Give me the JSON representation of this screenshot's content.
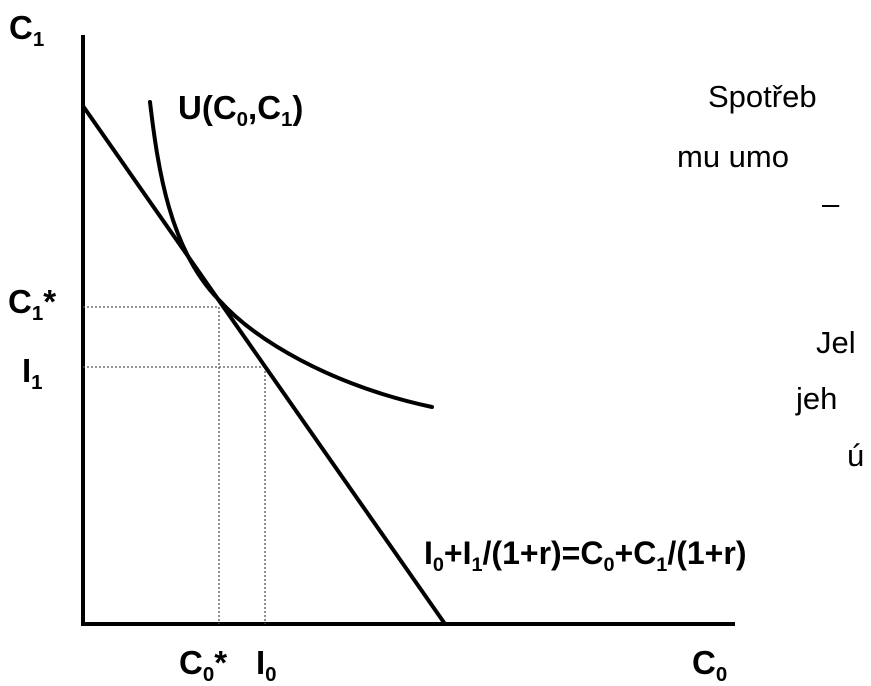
{
  "axes": {
    "y_label": {
      "base": "C",
      "sub": "1"
    },
    "x_label": {
      "base": "C",
      "sub": "0"
    }
  },
  "ticks": {
    "c1_star": {
      "base": "C",
      "sub": "1",
      "tail": "*"
    },
    "i1": {
      "base": "I",
      "sub": "1",
      "tail": ""
    },
    "c0_star": {
      "base": "C",
      "sub": "0",
      "tail": "*"
    },
    "i0": {
      "base": "I",
      "sub": "0",
      "tail": ""
    }
  },
  "curve_label": {
    "p1": "U(C",
    "s1": "0",
    "p2": ",C",
    "s2": "1",
    "p3": ")"
  },
  "budget_label": {
    "a": "I",
    "as": "0",
    "b": "+I",
    "bs": "1",
    "c": "/(1+r)=C",
    "cs": "0",
    "d": "+C",
    "ds": "1",
    "e": "/(1+r)"
  },
  "side_text": [
    "Spotřeb",
    "mu umo",
    "–",
    "Jel",
    "jeh",
    "ú"
  ],
  "colors": {
    "line": "#000000",
    "guide": "#555555"
  }
}
